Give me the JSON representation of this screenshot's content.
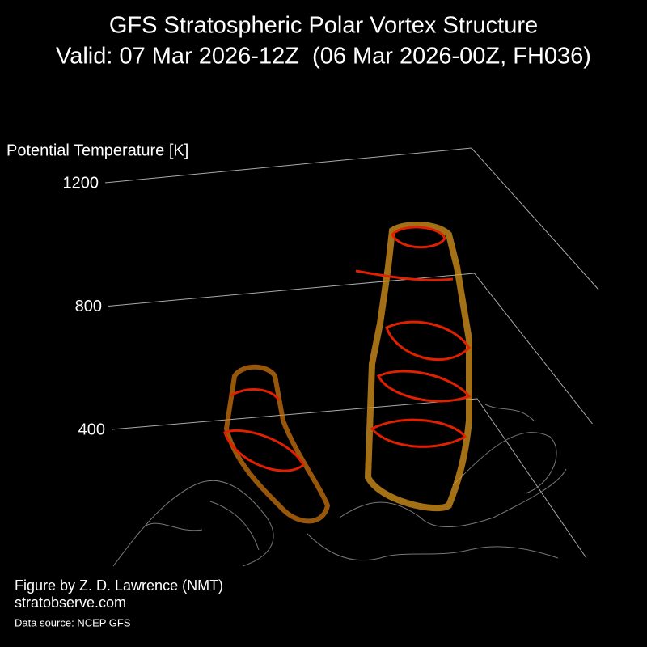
{
  "chart_data": {
    "type": "3d-surface",
    "title": "GFS Stratospheric Polar Vortex Structure",
    "subtitle": "Valid: 07 Mar 2026-12Z  (06 Mar 2026-00Z, FH036)",
    "zlabel": "Potential Temperature [K]",
    "zlim": [
      400,
      1200
    ],
    "zticks": [
      400,
      800,
      1200
    ],
    "credit": "Figure by Z. D. Lawrence (NMT)",
    "website": "stratobserve.com",
    "source": "Data source: NCEP GFS"
  }
}
